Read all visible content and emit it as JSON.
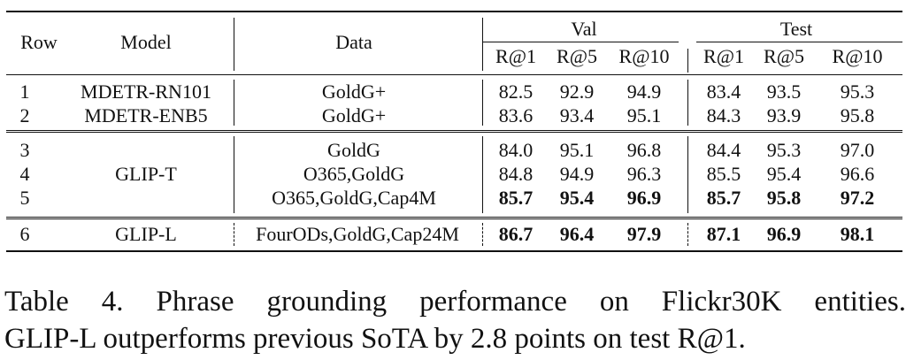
{
  "table": {
    "headers": {
      "row": "Row",
      "model": "Model",
      "data": "Data",
      "val_group": "Val",
      "test_group": "Test",
      "metrics": [
        "R@1",
        "R@5",
        "R@10",
        "R@1",
        "R@5",
        "R@10"
      ]
    },
    "rows": [
      {
        "row": "1",
        "model": "MDETR-RN101",
        "data": "GoldG+",
        "values": [
          "82.5",
          "92.9",
          "94.9",
          "83.4",
          "93.5",
          "95.3"
        ],
        "bold": false
      },
      {
        "row": "2",
        "model": "MDETR-ENB5",
        "data": "GoldG+",
        "values": [
          "83.6",
          "93.4",
          "95.1",
          "84.3",
          "93.9",
          "95.8"
        ],
        "bold": false
      },
      {
        "row": "3",
        "model": "",
        "data": "GoldG",
        "values": [
          "84.0",
          "95.1",
          "96.8",
          "84.4",
          "95.3",
          "97.0"
        ],
        "bold": false
      },
      {
        "row": "4",
        "model": "GLIP-T",
        "data": "O365,GoldG",
        "values": [
          "84.8",
          "94.9",
          "96.3",
          "85.5",
          "95.4",
          "96.6"
        ],
        "bold": false
      },
      {
        "row": "5",
        "model": "",
        "data": "O365,GoldG,Cap4M",
        "values": [
          "85.7",
          "95.4",
          "96.9",
          "85.7",
          "95.8",
          "97.2"
        ],
        "bold": true
      },
      {
        "row": "6",
        "model": "GLIP-L",
        "data": "FourODs,GoldG,Cap24M",
        "values": [
          "86.7",
          "96.4",
          "97.9",
          "87.1",
          "96.9",
          "98.1"
        ],
        "bold": true
      }
    ]
  },
  "caption": {
    "line1": "Table 4.  Phrase grounding performance on Flickr30K entities.",
    "line2": "GLIP-L outperforms previous SoTA by 2.8 points on test R@1."
  }
}
